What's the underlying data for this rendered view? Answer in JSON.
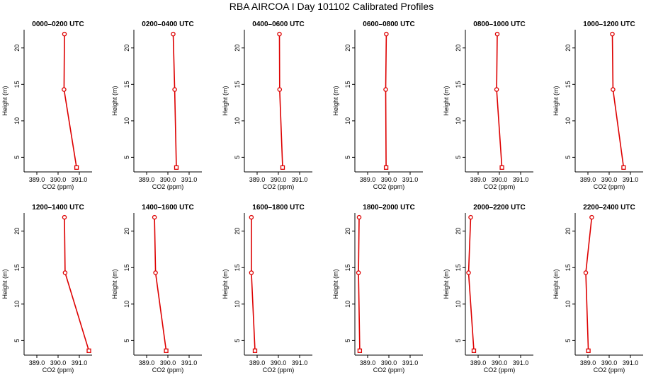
{
  "title": "RBA AIRCOA I  Day 101102  Calibrated Profiles",
  "colors": {
    "series": "#dd0000",
    "axis": "#000000"
  },
  "chart_data": [
    {
      "type": "line",
      "title": "0000–0200 UTC",
      "xlabel": "CO2 (ppm)",
      "ylabel": "Height (m)",
      "xlim": [
        388.4,
        391.6
      ],
      "ylim": [
        3,
        22.5
      ],
      "xticks": [
        "389.0",
        "390.0",
        "391.0"
      ],
      "yticks": [
        "5",
        "10",
        "15",
        "20"
      ],
      "grid": false,
      "points": [
        {
          "x": 390.3,
          "y": 21.9
        },
        {
          "x": 390.28,
          "y": 14.3
        },
        {
          "x": 390.87,
          "y": 3.6
        }
      ]
    },
    {
      "type": "line",
      "title": "0200–0400 UTC",
      "xlabel": "CO2 (ppm)",
      "ylabel": "Height (m)",
      "xlim": [
        388.4,
        391.6
      ],
      "ylim": [
        3,
        22.5
      ],
      "xticks": [
        "389.0",
        "390.0",
        "391.0"
      ],
      "yticks": [
        "5",
        "10",
        "15",
        "20"
      ],
      "grid": false,
      "points": [
        {
          "x": 390.25,
          "y": 21.9
        },
        {
          "x": 390.32,
          "y": 14.3
        },
        {
          "x": 390.4,
          "y": 3.6
        }
      ]
    },
    {
      "type": "line",
      "title": "0400–0600 UTC",
      "xlabel": "CO2 (ppm)",
      "ylabel": "Height (m)",
      "xlim": [
        388.4,
        391.6
      ],
      "ylim": [
        3,
        22.5
      ],
      "xticks": [
        "389.0",
        "390.0",
        "391.0"
      ],
      "yticks": [
        "5",
        "10",
        "15",
        "20"
      ],
      "grid": false,
      "points": [
        {
          "x": 390.05,
          "y": 21.9
        },
        {
          "x": 390.06,
          "y": 14.3
        },
        {
          "x": 390.2,
          "y": 3.6
        }
      ]
    },
    {
      "type": "line",
      "title": "0600–0800 UTC",
      "xlabel": "CO2 (ppm)",
      "ylabel": "Height (m)",
      "xlim": [
        388.4,
        391.6
      ],
      "ylim": [
        3,
        22.5
      ],
      "xticks": [
        "389.0",
        "390.0",
        "391.0"
      ],
      "yticks": [
        "5",
        "10",
        "15",
        "20"
      ],
      "grid": false,
      "points": [
        {
          "x": 389.88,
          "y": 21.9
        },
        {
          "x": 389.85,
          "y": 14.3
        },
        {
          "x": 389.87,
          "y": 3.6
        }
      ]
    },
    {
      "type": "line",
      "title": "0800–1000 UTC",
      "xlabel": "CO2 (ppm)",
      "ylabel": "Height (m)",
      "xlim": [
        388.4,
        391.6
      ],
      "ylim": [
        3,
        22.5
      ],
      "xticks": [
        "389.0",
        "390.0",
        "391.0"
      ],
      "yticks": [
        "5",
        "10",
        "15",
        "20"
      ],
      "grid": false,
      "points": [
        {
          "x": 389.9,
          "y": 21.9
        },
        {
          "x": 389.87,
          "y": 14.3
        },
        {
          "x": 390.12,
          "y": 3.6
        }
      ]
    },
    {
      "type": "line",
      "title": "1000–1200 UTC",
      "xlabel": "CO2 (ppm)",
      "ylabel": "Height (m)",
      "xlim": [
        388.4,
        391.6
      ],
      "ylim": [
        3,
        22.5
      ],
      "xticks": [
        "389.0",
        "390.0",
        "391.0"
      ],
      "yticks": [
        "5",
        "10",
        "15",
        "20"
      ],
      "grid": false,
      "points": [
        {
          "x": 390.15,
          "y": 21.9
        },
        {
          "x": 390.18,
          "y": 14.3
        },
        {
          "x": 390.68,
          "y": 3.6
        }
      ]
    },
    {
      "type": "line",
      "title": "1200–1400 UTC",
      "xlabel": "CO2 (ppm)",
      "ylabel": "Height (m)",
      "xlim": [
        388.4,
        391.6
      ],
      "ylim": [
        3,
        22.5
      ],
      "xticks": [
        "389.0",
        "390.0",
        "391.0"
      ],
      "yticks": [
        "5",
        "10",
        "15",
        "20"
      ],
      "grid": false,
      "points": [
        {
          "x": 390.3,
          "y": 21.9
        },
        {
          "x": 390.33,
          "y": 14.3
        },
        {
          "x": 391.45,
          "y": 3.6
        }
      ]
    },
    {
      "type": "line",
      "title": "1400–1600 UTC",
      "xlabel": "CO2 (ppm)",
      "ylabel": "Height (m)",
      "xlim": [
        388.4,
        391.6
      ],
      "ylim": [
        3,
        22.5
      ],
      "xticks": [
        "389.0",
        "390.0",
        "391.0"
      ],
      "yticks": [
        "5",
        "10",
        "15",
        "20"
      ],
      "grid": false,
      "points": [
        {
          "x": 389.37,
          "y": 21.9
        },
        {
          "x": 389.42,
          "y": 14.3
        },
        {
          "x": 389.92,
          "y": 3.6
        }
      ]
    },
    {
      "type": "line",
      "title": "1600–1800 UTC",
      "xlabel": "CO2 (ppm)",
      "ylabel": "Height (m)",
      "xlim": [
        388.4,
        391.6
      ],
      "ylim": [
        3,
        22.5
      ],
      "xticks": [
        "389.0",
        "390.0",
        "391.0"
      ],
      "yticks": [
        "5",
        "10",
        "15",
        "20"
      ],
      "grid": false,
      "points": [
        {
          "x": 388.73,
          "y": 21.9
        },
        {
          "x": 388.73,
          "y": 14.3
        },
        {
          "x": 388.9,
          "y": 3.6
        }
      ]
    },
    {
      "type": "line",
      "title": "1800–2000 UTC",
      "xlabel": "CO2 (ppm)",
      "ylabel": "Height (m)",
      "xlim": [
        388.4,
        391.6
      ],
      "ylim": [
        3,
        22.5
      ],
      "xticks": [
        "389.0",
        "390.0",
        "391.0"
      ],
      "yticks": [
        "5",
        "10",
        "15",
        "20"
      ],
      "grid": false,
      "points": [
        {
          "x": 388.6,
          "y": 21.9
        },
        {
          "x": 388.57,
          "y": 14.3
        },
        {
          "x": 388.63,
          "y": 3.6
        }
      ]
    },
    {
      "type": "line",
      "title": "2000–2200 UTC",
      "xlabel": "CO2 (ppm)",
      "ylabel": "Height (m)",
      "xlim": [
        388.4,
        391.6
      ],
      "ylim": [
        3,
        22.5
      ],
      "xticks": [
        "389.0",
        "390.0",
        "391.0"
      ],
      "yticks": [
        "5",
        "10",
        "15",
        "20"
      ],
      "grid": false,
      "points": [
        {
          "x": 388.65,
          "y": 21.9
        },
        {
          "x": 388.55,
          "y": 14.3
        },
        {
          "x": 388.8,
          "y": 3.6
        }
      ]
    },
    {
      "type": "line",
      "title": "2200–2400 UTC",
      "xlabel": "CO2 (ppm)",
      "ylabel": "Height (m)",
      "xlim": [
        388.4,
        391.6
      ],
      "ylim": [
        3,
        22.5
      ],
      "xticks": [
        "389.0",
        "390.0",
        "391.0"
      ],
      "yticks": [
        "5",
        "10",
        "15",
        "20"
      ],
      "grid": false,
      "points": [
        {
          "x": 389.18,
          "y": 21.9
        },
        {
          "x": 388.9,
          "y": 14.3
        },
        {
          "x": 389.02,
          "y": 3.6
        }
      ]
    }
  ]
}
